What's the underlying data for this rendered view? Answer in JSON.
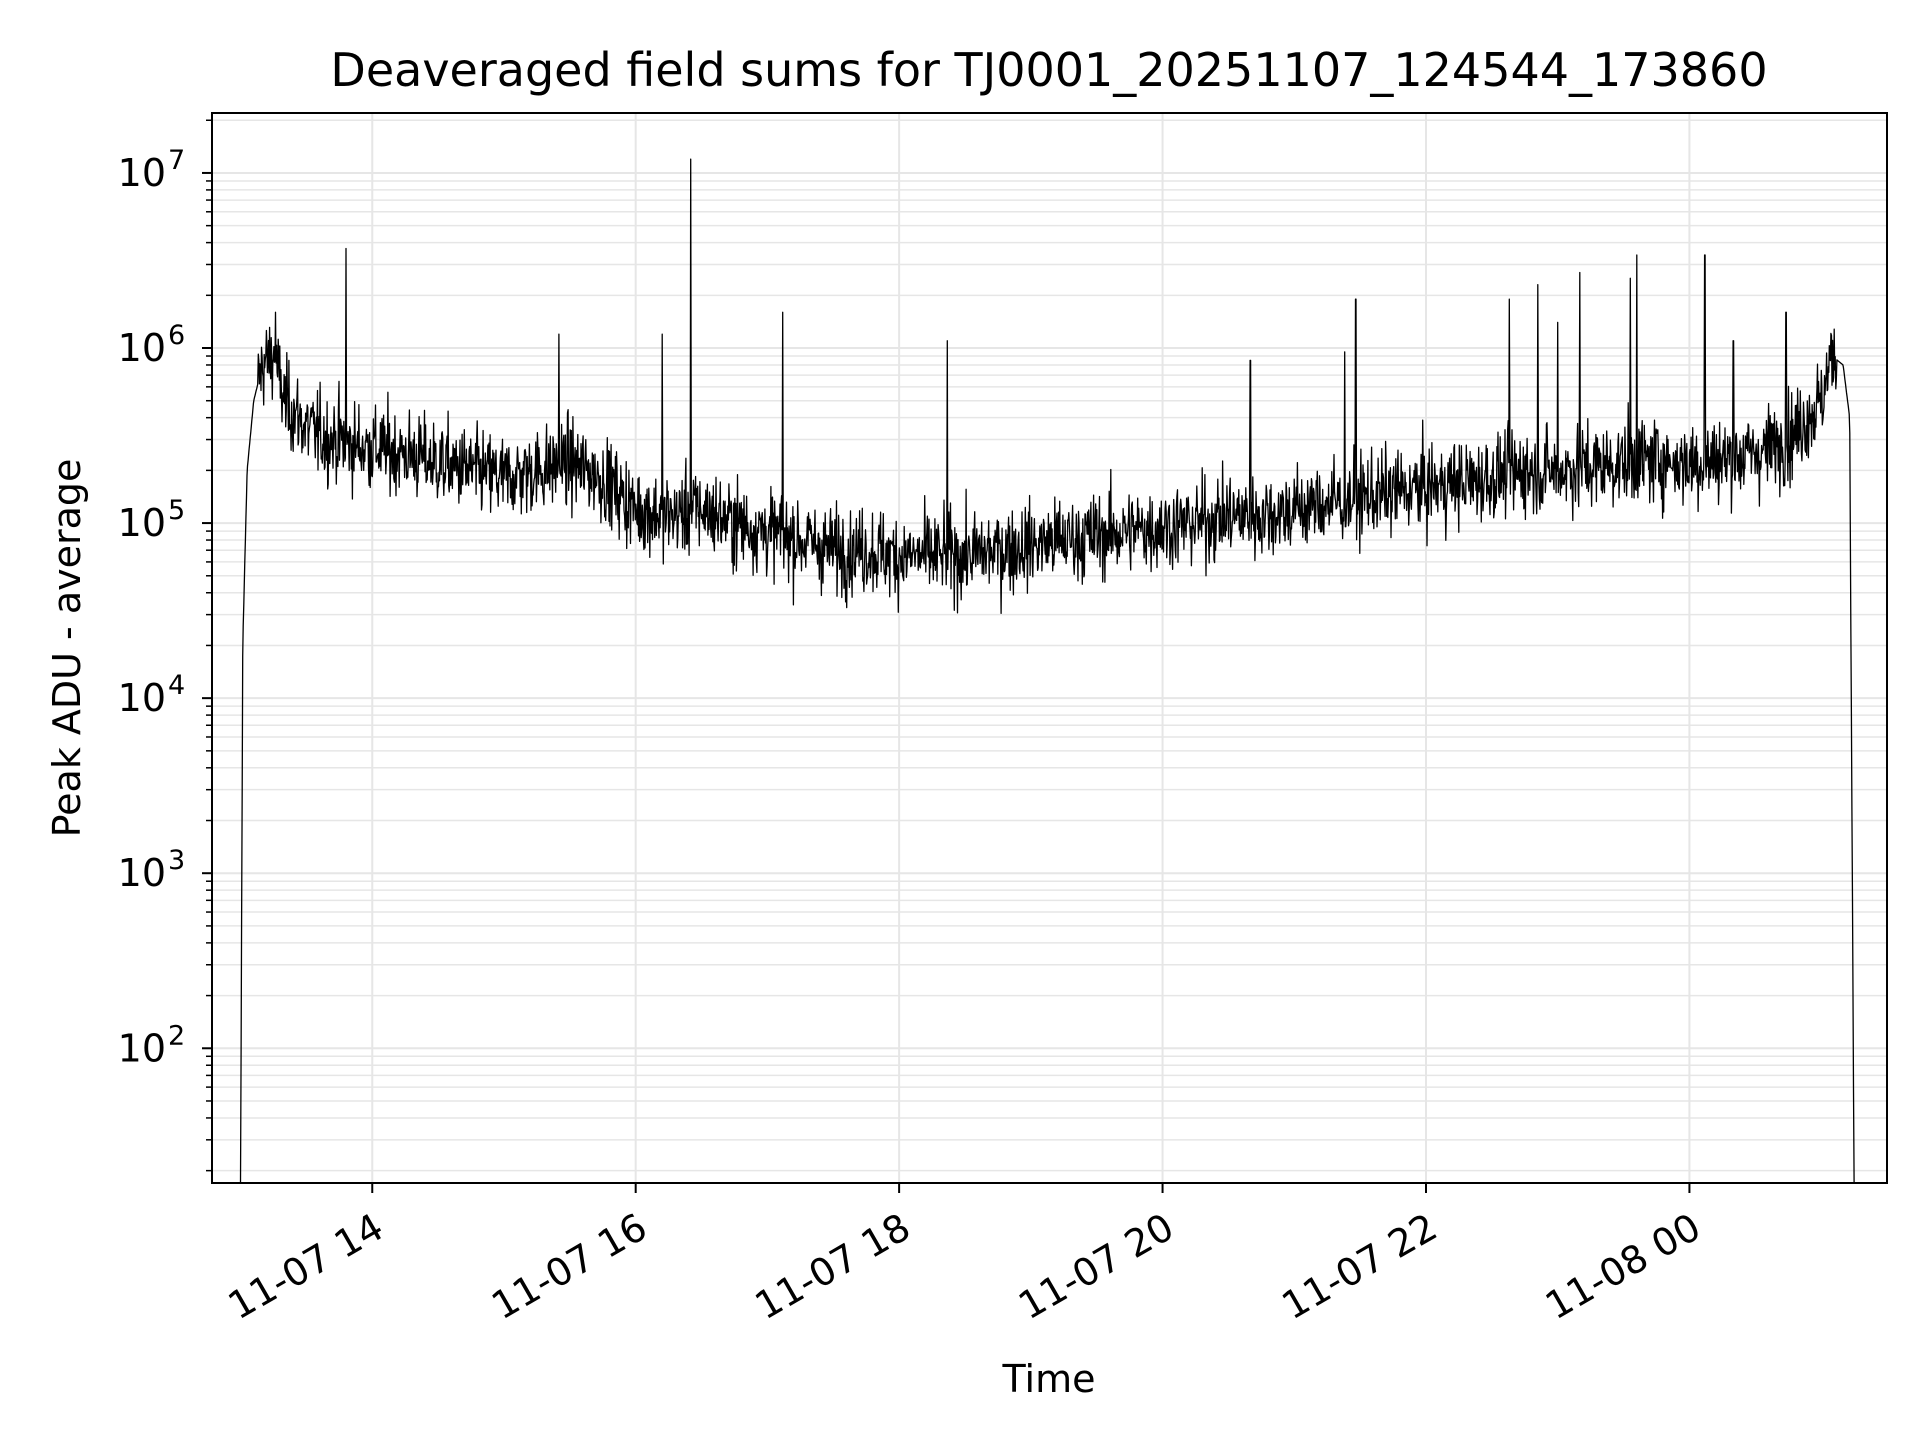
{
  "chart_data": {
    "type": "line",
    "title": "Deaveraged field sums for TJ0001_20251107_124544_173860",
    "xlabel": "Time",
    "ylabel": "Peak ADU - average",
    "yscale": "log",
    "xlim": [
      "2025-11-07 12:47",
      "2025-11-08 01:30"
    ],
    "ylim": [
      17,
      22000000
    ],
    "grid": true,
    "line_color": "#000000",
    "grid_color": "#e6e6e6",
    "x_ticks": [
      {
        "t": "2025-11-07 14:00",
        "label": "11-07 14"
      },
      {
        "t": "2025-11-07 16:00",
        "label": "11-07 16"
      },
      {
        "t": "2025-11-07 18:00",
        "label": "11-07 18"
      },
      {
        "t": "2025-11-07 20:00",
        "label": "11-07 20"
      },
      {
        "t": "2025-11-07 22:00",
        "label": "11-07 22"
      },
      {
        "t": "2025-11-08 00:00",
        "label": "11-08 00"
      }
    ],
    "y_ticks": [
      {
        "value": 100,
        "base": "10",
        "exp": "2"
      },
      {
        "value": 1000,
        "base": "10",
        "exp": "3"
      },
      {
        "value": 10000,
        "base": "10",
        "exp": "4"
      },
      {
        "value": 100000,
        "base": "10",
        "exp": "5"
      },
      {
        "value": 1000000,
        "base": "10",
        "exp": "6"
      },
      {
        "value": 10000000,
        "base": "10",
        "exp": "7"
      }
    ],
    "x": [
      "2025-11-07 13:00",
      "2025-11-07 13:01",
      "2025-11-07 13:03",
      "2025-11-07 13:06",
      "2025-11-07 13:10",
      "2025-11-07 13:15",
      "2025-11-07 13:20",
      "2025-11-07 13:30",
      "2025-11-07 13:40",
      "2025-11-07 13:45",
      "2025-11-07 13:50",
      "2025-11-07 14:00",
      "2025-11-07 14:15",
      "2025-11-07 14:30",
      "2025-11-07 14:45",
      "2025-11-07 15:00",
      "2025-11-07 15:15",
      "2025-11-07 15:30",
      "2025-11-07 15:45",
      "2025-11-07 16:00",
      "2025-11-07 16:15",
      "2025-11-07 16:30",
      "2025-11-07 16:45",
      "2025-11-07 17:00",
      "2025-11-07 17:15",
      "2025-11-07 17:30",
      "2025-11-07 17:45",
      "2025-11-07 18:00",
      "2025-11-07 18:15",
      "2025-11-07 18:30",
      "2025-11-07 18:45",
      "2025-11-07 19:00",
      "2025-11-07 19:15",
      "2025-11-07 19:30",
      "2025-11-07 19:45",
      "2025-11-07 20:00",
      "2025-11-07 20:15",
      "2025-11-07 20:30",
      "2025-11-07 20:45",
      "2025-11-07 21:00",
      "2025-11-07 21:15",
      "2025-11-07 21:30",
      "2025-11-07 21:45",
      "2025-11-07 22:00",
      "2025-11-07 22:15",
      "2025-11-07 22:30",
      "2025-11-07 22:45",
      "2025-11-07 23:00",
      "2025-11-07 23:15",
      "2025-11-07 23:30",
      "2025-11-07 23:45",
      "2025-11-08 00:00",
      "2025-11-08 00:15",
      "2025-11-08 00:30",
      "2025-11-08 00:45",
      "2025-11-08 01:00",
      "2025-11-08 01:05",
      "2025-11-08 01:10",
      "2025-11-08 01:13",
      "2025-11-08 01:15"
    ],
    "y": [
      17,
      20000,
      200000,
      500000,
      800000,
      900000,
      500000,
      350000,
      300000,
      300000,
      280000,
      270000,
      250000,
      220000,
      200000,
      180000,
      200000,
      220000,
      180000,
      120000,
      110000,
      120000,
      100000,
      90000,
      80000,
      70000,
      70000,
      65000,
      65000,
      65000,
      70000,
      75000,
      80000,
      85000,
      90000,
      95000,
      100000,
      110000,
      110000,
      120000,
      130000,
      140000,
      150000,
      160000,
      170000,
      180000,
      200000,
      200000,
      210000,
      220000,
      230000,
      220000,
      230000,
      250000,
      300000,
      500000,
      900000,
      800000,
      400000,
      17
    ],
    "spikes": [
      {
        "t": "2025-11-07 13:48",
        "value": 3700000
      },
      {
        "t": "2025-11-07 13:16",
        "value": 1600000
      },
      {
        "t": "2025-11-07 16:25",
        "value": 12000000
      },
      {
        "t": "2025-11-07 15:25",
        "value": 1200000
      },
      {
        "t": "2025-11-07 16:12",
        "value": 1200000
      },
      {
        "t": "2025-11-07 17:07",
        "value": 1600000
      },
      {
        "t": "2025-11-07 18:22",
        "value": 1100000
      },
      {
        "t": "2025-11-07 20:40",
        "value": 850000
      },
      {
        "t": "2025-11-07 21:23",
        "value": 950000
      },
      {
        "t": "2025-11-07 21:28",
        "value": 1900000
      },
      {
        "t": "2025-11-07 22:38",
        "value": 1900000
      },
      {
        "t": "2025-11-07 22:51",
        "value": 2300000
      },
      {
        "t": "2025-11-07 23:00",
        "value": 1400000
      },
      {
        "t": "2025-11-07 23:10",
        "value": 2700000
      },
      {
        "t": "2025-11-07 23:33",
        "value": 2500000
      },
      {
        "t": "2025-11-07 23:36",
        "value": 3400000
      },
      {
        "t": "2025-11-08 00:07",
        "value": 3400000
      },
      {
        "t": "2025-11-08 00:20",
        "value": 1100000
      },
      {
        "t": "2025-11-08 00:44",
        "value": 1600000
      }
    ]
  }
}
